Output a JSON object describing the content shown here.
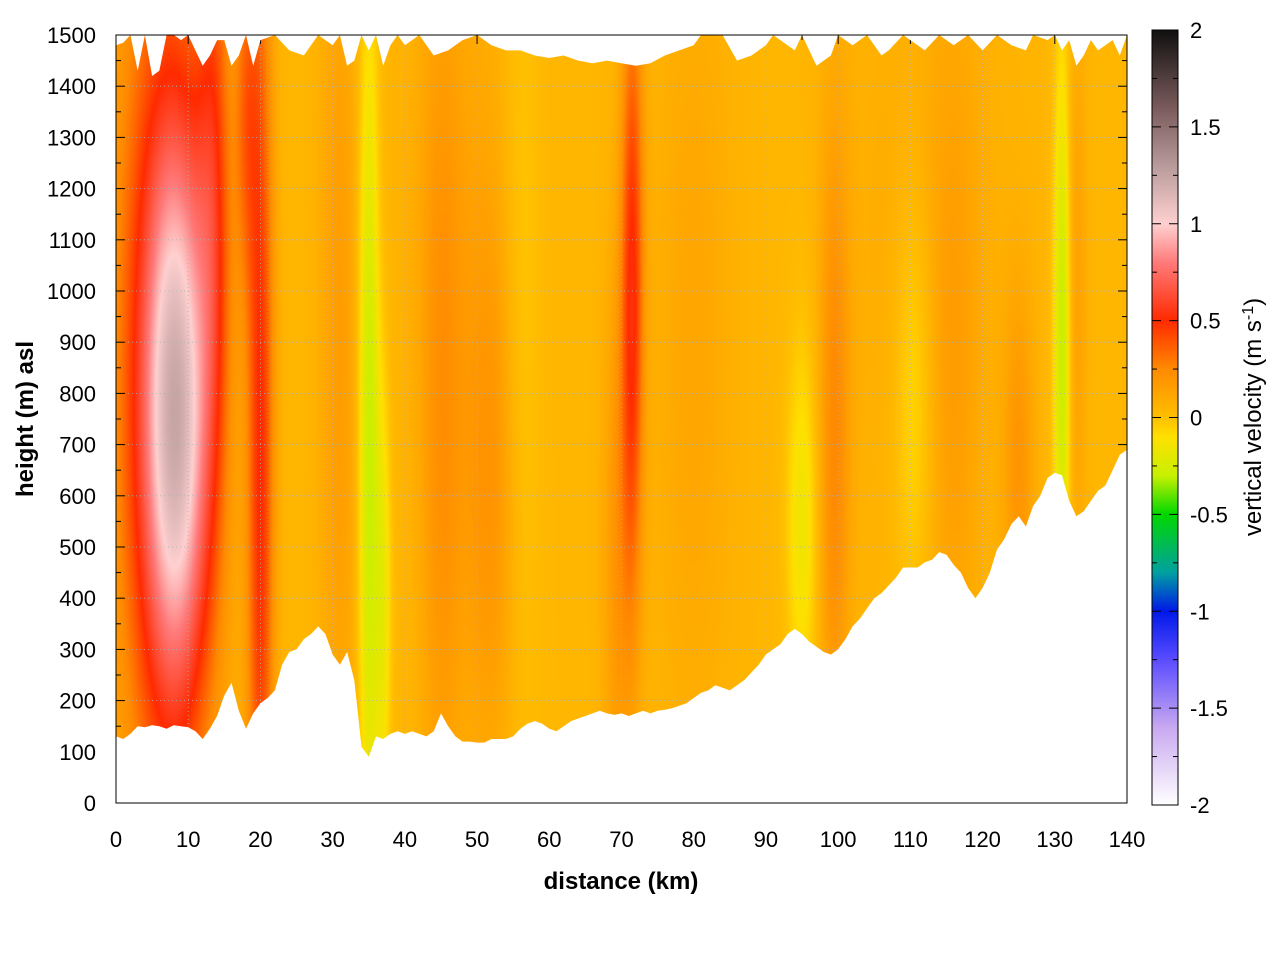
{
  "chart_data": {
    "type": "heatmap",
    "title": "",
    "xlabel": "distance (km)",
    "ylabel": "height (m) asl",
    "xlim": [
      0,
      140
    ],
    "ylim": [
      0,
      1500
    ],
    "x_ticks": [
      "0",
      "10",
      "20",
      "30",
      "40",
      "50",
      "60",
      "70",
      "80",
      "90",
      "100",
      "110",
      "120",
      "130",
      "140"
    ],
    "y_ticks": [
      "0",
      "100",
      "200",
      "300",
      "400",
      "500",
      "600",
      "700",
      "800",
      "900",
      "1000",
      "1100",
      "1200",
      "1300",
      "1400",
      "1500"
    ],
    "grid": true,
    "colorbar": {
      "label_main": "vertical velocity (m s",
      "label_sup": "-1",
      "label_close": ")",
      "range": [
        -2,
        2
      ],
      "ticks": [
        "2",
        "1.5",
        "1",
        "0.5",
        "0",
        "-0.5",
        "-1",
        "-1.5",
        "-2"
      ],
      "stops": [
        {
          "v": -2.0,
          "c": "#ffffff"
        },
        {
          "v": -1.6,
          "c": "#c8a8f0"
        },
        {
          "v": -1.25,
          "c": "#5a4cff"
        },
        {
          "v": -1.0,
          "c": "#0018e8"
        },
        {
          "v": -0.8,
          "c": "#00a0a0"
        },
        {
          "v": -0.5,
          "c": "#00d800"
        },
        {
          "v": -0.3,
          "c": "#c8f000"
        },
        {
          "v": -0.1,
          "c": "#ffe000"
        },
        {
          "v": 0.0,
          "c": "#ffbf00"
        },
        {
          "v": 0.25,
          "c": "#ff8a00"
        },
        {
          "v": 0.5,
          "c": "#ff2a00"
        },
        {
          "v": 0.8,
          "c": "#ff7a7a"
        },
        {
          "v": 1.0,
          "c": "#ffd0d0"
        },
        {
          "v": 1.3,
          "c": "#b89a9a"
        },
        {
          "v": 1.6,
          "c": "#7a5a5a"
        },
        {
          "v": 2.0,
          "c": "#101010"
        }
      ]
    },
    "velocity_features": [
      {
        "x": 8.5,
        "y": 750,
        "amp": 0.95,
        "sx": 3.5,
        "sy": 420
      },
      {
        "x": 5.5,
        "y": 900,
        "amp": 0.3,
        "sx": 5.0,
        "sy": 700
      },
      {
        "x": 13.5,
        "y": 1250,
        "amp": 0.3,
        "sx": 1.6,
        "sy": 400
      },
      {
        "x": 20.0,
        "y": 650,
        "amp": 0.45,
        "sx": 1.3,
        "sy": 750
      },
      {
        "x": 18.0,
        "y": 1350,
        "amp": 0.25,
        "sx": 1.2,
        "sy": 250
      },
      {
        "x": 31.0,
        "y": 900,
        "amp": 0.12,
        "sx": 2.0,
        "sy": 700
      },
      {
        "x": 35.0,
        "y": 700,
        "amp": -0.35,
        "sx": 1.0,
        "sy": 600
      },
      {
        "x": 37.0,
        "y": 400,
        "amp": -0.2,
        "sx": 0.8,
        "sy": 300
      },
      {
        "x": 45.0,
        "y": 700,
        "amp": 0.15,
        "sx": 2.0,
        "sy": 600
      },
      {
        "x": 52.0,
        "y": 600,
        "amp": 0.15,
        "sx": 3.0,
        "sy": 400
      },
      {
        "x": 56.0,
        "y": 900,
        "amp": -0.1,
        "sx": 2.0,
        "sy": 600
      },
      {
        "x": 71.5,
        "y": 1000,
        "amp": 0.45,
        "sx": 1.1,
        "sy": 420
      },
      {
        "x": 69.5,
        "y": 500,
        "amp": 0.15,
        "sx": 1.5,
        "sy": 400
      },
      {
        "x": 80.0,
        "y": 900,
        "amp": 0.08,
        "sx": 4.0,
        "sy": 600
      },
      {
        "x": 95.0,
        "y": 550,
        "amp": -0.2,
        "sx": 1.5,
        "sy": 250
      },
      {
        "x": 99.5,
        "y": 700,
        "amp": 0.2,
        "sx": 1.5,
        "sy": 450
      },
      {
        "x": 110.5,
        "y": 800,
        "amp": -0.15,
        "sx": 2.0,
        "sy": 300
      },
      {
        "x": 116.0,
        "y": 800,
        "amp": 0.08,
        "sx": 2.5,
        "sy": 500
      },
      {
        "x": 125.0,
        "y": 650,
        "amp": 0.15,
        "sx": 1.5,
        "sy": 250
      },
      {
        "x": 131.0,
        "y": 900,
        "amp": -0.35,
        "sx": 0.8,
        "sy": 400
      },
      {
        "x": 133.0,
        "y": 1000,
        "amp": 0.1,
        "sx": 1.0,
        "sy": 400
      },
      {
        "x": 112.0,
        "y": 1100,
        "amp": 0.06,
        "sx": 8.0,
        "sy": 500
      },
      {
        "x": 48.0,
        "y": 1200,
        "amp": 0.06,
        "sx": 6.0,
        "sy": 500
      }
    ],
    "terrain_bottom": [
      [
        0,
        130
      ],
      [
        1,
        125
      ],
      [
        2,
        135
      ],
      [
        3,
        150
      ],
      [
        4,
        148
      ],
      [
        5,
        152
      ],
      [
        6,
        150
      ],
      [
        7,
        145
      ],
      [
        8,
        152
      ],
      [
        9,
        150
      ],
      [
        10,
        148
      ],
      [
        11,
        140
      ],
      [
        12,
        125
      ],
      [
        13,
        145
      ],
      [
        14,
        170
      ],
      [
        15,
        210
      ],
      [
        16,
        235
      ],
      [
        17,
        180
      ],
      [
        18,
        145
      ],
      [
        19,
        175
      ],
      [
        20,
        195
      ],
      [
        21,
        205
      ],
      [
        22,
        220
      ],
      [
        23,
        270
      ],
      [
        24,
        295
      ],
      [
        25,
        300
      ],
      [
        26,
        320
      ],
      [
        27,
        330
      ],
      [
        28,
        345
      ],
      [
        29,
        330
      ],
      [
        30,
        290
      ],
      [
        31,
        270
      ],
      [
        32,
        295
      ],
      [
        33,
        240
      ],
      [
        34,
        110
      ],
      [
        35,
        90
      ],
      [
        36,
        130
      ],
      [
        37,
        125
      ],
      [
        38,
        135
      ],
      [
        39,
        140
      ],
      [
        40,
        135
      ],
      [
        41,
        140
      ],
      [
        42,
        135
      ],
      [
        43,
        130
      ],
      [
        44,
        140
      ],
      [
        45,
        175
      ],
      [
        46,
        150
      ],
      [
        47,
        130
      ],
      [
        48,
        120
      ],
      [
        49,
        120
      ],
      [
        50,
        118
      ],
      [
        51,
        118
      ],
      [
        52,
        125
      ],
      [
        53,
        125
      ],
      [
        54,
        125
      ],
      [
        55,
        130
      ],
      [
        56,
        145
      ],
      [
        57,
        155
      ],
      [
        58,
        160
      ],
      [
        59,
        155
      ],
      [
        60,
        145
      ],
      [
        61,
        140
      ],
      [
        62,
        150
      ],
      [
        63,
        160
      ],
      [
        64,
        165
      ],
      [
        65,
        170
      ],
      [
        66,
        175
      ],
      [
        67,
        180
      ],
      [
        68,
        175
      ],
      [
        69,
        172
      ],
      [
        70,
        175
      ],
      [
        71,
        170
      ],
      [
        72,
        175
      ],
      [
        73,
        180
      ],
      [
        74,
        175
      ],
      [
        75,
        180
      ],
      [
        76,
        182
      ],
      [
        77,
        185
      ],
      [
        78,
        190
      ],
      [
        79,
        195
      ],
      [
        80,
        205
      ],
      [
        81,
        215
      ],
      [
        82,
        220
      ],
      [
        83,
        230
      ],
      [
        84,
        225
      ],
      [
        85,
        220
      ],
      [
        86,
        230
      ],
      [
        87,
        240
      ],
      [
        88,
        255
      ],
      [
        89,
        270
      ],
      [
        90,
        290
      ],
      [
        91,
        300
      ],
      [
        92,
        310
      ],
      [
        93,
        330
      ],
      [
        94,
        340
      ],
      [
        95,
        330
      ],
      [
        96,
        315
      ],
      [
        97,
        305
      ],
      [
        98,
        295
      ],
      [
        99,
        290
      ],
      [
        100,
        300
      ],
      [
        101,
        320
      ],
      [
        102,
        345
      ],
      [
        103,
        360
      ],
      [
        104,
        380
      ],
      [
        105,
        400
      ],
      [
        106,
        410
      ],
      [
        107,
        425
      ],
      [
        108,
        440
      ],
      [
        109,
        460
      ],
      [
        110,
        460
      ],
      [
        111,
        460
      ],
      [
        112,
        470
      ],
      [
        113,
        475
      ],
      [
        114,
        490
      ],
      [
        115,
        485
      ],
      [
        116,
        465
      ],
      [
        117,
        450
      ],
      [
        118,
        420
      ],
      [
        119,
        400
      ],
      [
        120,
        420
      ],
      [
        121,
        450
      ],
      [
        122,
        495
      ],
      [
        123,
        515
      ],
      [
        124,
        545
      ],
      [
        125,
        560
      ],
      [
        126,
        540
      ],
      [
        127,
        580
      ],
      [
        128,
        600
      ],
      [
        129,
        635
      ],
      [
        130,
        645
      ],
      [
        131,
        640
      ],
      [
        132,
        590
      ],
      [
        133,
        560
      ],
      [
        134,
        570
      ],
      [
        135,
        590
      ],
      [
        136,
        610
      ],
      [
        137,
        620
      ],
      [
        138,
        650
      ],
      [
        139,
        680
      ],
      [
        140,
        690
      ]
    ],
    "terrain_top": [
      [
        0,
        1480
      ],
      [
        1,
        1485
      ],
      [
        2,
        1500
      ],
      [
        3,
        1430
      ],
      [
        4,
        1500
      ],
      [
        5,
        1420
      ],
      [
        6,
        1430
      ],
      [
        7,
        1500
      ],
      [
        8,
        1500
      ],
      [
        9,
        1490
      ],
      [
        10,
        1500
      ],
      [
        11,
        1470
      ],
      [
        12,
        1440
      ],
      [
        13,
        1460
      ],
      [
        14,
        1490
      ],
      [
        15,
        1490
      ],
      [
        16,
        1440
      ],
      [
        17,
        1460
      ],
      [
        18,
        1500
      ],
      [
        19,
        1440
      ],
      [
        20,
        1490
      ],
      [
        22,
        1500
      ],
      [
        24,
        1470
      ],
      [
        26,
        1460
      ],
      [
        27,
        1480
      ],
      [
        28,
        1500
      ],
      [
        30,
        1480
      ],
      [
        31,
        1500
      ],
      [
        32,
        1440
      ],
      [
        33,
        1450
      ],
      [
        34,
        1500
      ],
      [
        35,
        1470
      ],
      [
        36,
        1500
      ],
      [
        37,
        1440
      ],
      [
        38,
        1480
      ],
      [
        39,
        1500
      ],
      [
        40,
        1480
      ],
      [
        42,
        1500
      ],
      [
        44,
        1460
      ],
      [
        46,
        1470
      ],
      [
        48,
        1490
      ],
      [
        50,
        1500
      ],
      [
        52,
        1480
      ],
      [
        54,
        1470
      ],
      [
        56,
        1470
      ],
      [
        58,
        1460
      ],
      [
        60,
        1455
      ],
      [
        62,
        1460
      ],
      [
        64,
        1450
      ],
      [
        66,
        1445
      ],
      [
        68,
        1450
      ],
      [
        70,
        1445
      ],
      [
        72,
        1440
      ],
      [
        74,
        1445
      ],
      [
        76,
        1460
      ],
      [
        78,
        1470
      ],
      [
        80,
        1480
      ],
      [
        81,
        1500
      ],
      [
        84,
        1500
      ],
      [
        86,
        1450
      ],
      [
        88,
        1460
      ],
      [
        90,
        1480
      ],
      [
        91,
        1500
      ],
      [
        94,
        1470
      ],
      [
        95,
        1500
      ],
      [
        97,
        1440
      ],
      [
        99,
        1460
      ],
      [
        100,
        1500
      ],
      [
        102,
        1480
      ],
      [
        104,
        1500
      ],
      [
        106,
        1460
      ],
      [
        107,
        1470
      ],
      [
        109,
        1500
      ],
      [
        112,
        1470
      ],
      [
        114,
        1500
      ],
      [
        116,
        1480
      ],
      [
        118,
        1500
      ],
      [
        120,
        1470
      ],
      [
        122,
        1500
      ],
      [
        124,
        1480
      ],
      [
        126,
        1470
      ],
      [
        127,
        1500
      ],
      [
        129,
        1490
      ],
      [
        130,
        1500
      ],
      [
        131,
        1470
      ],
      [
        132,
        1490
      ],
      [
        133,
        1440
      ],
      [
        134,
        1460
      ],
      [
        135,
        1490
      ],
      [
        136,
        1470
      ],
      [
        138,
        1490
      ],
      [
        139,
        1460
      ],
      [
        140,
        1500
      ]
    ]
  }
}
